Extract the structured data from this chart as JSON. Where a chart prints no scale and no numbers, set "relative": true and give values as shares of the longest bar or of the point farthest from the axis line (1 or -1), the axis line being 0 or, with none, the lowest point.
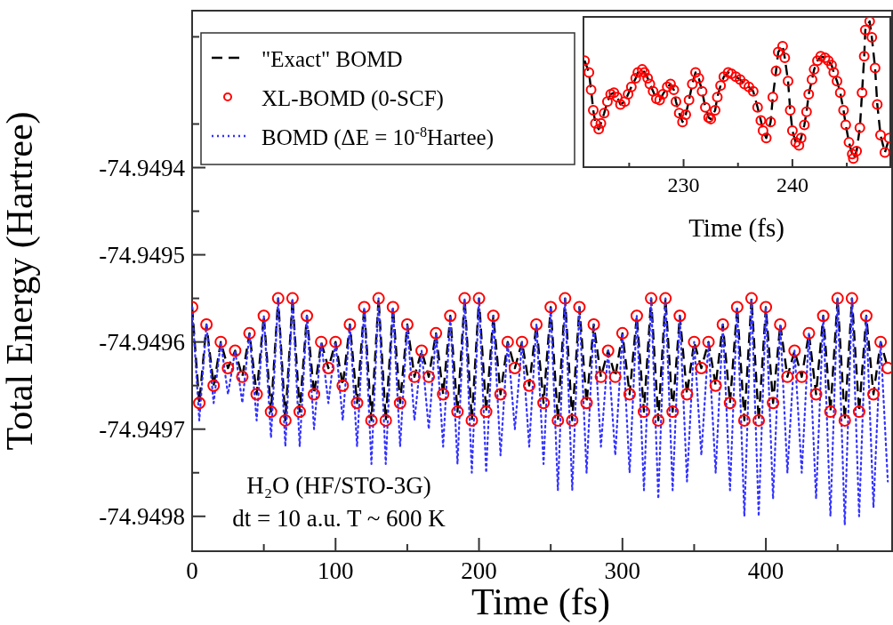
{
  "chart_data": [
    {
      "type": "line",
      "xlabel": "Time (fs)",
      "ylabel": "Total Energy (Hartree)",
      "xlim": [
        0,
        488
      ],
      "ylim": [
        -74.94984,
        -74.94922
      ],
      "xticks": [
        0,
        {
          "value": 50,
          "label": null
        },
        100,
        {
          "value": 150,
          "label": null
        },
        200,
        {
          "value": 250,
          "label": null
        },
        300,
        {
          "value": 350,
          "label": null
        },
        400,
        {
          "value": 450,
          "label": null
        }
      ],
      "yticks": [
        {
          "value": -74.94975,
          "label": null
        },
        -74.9498,
        -74.9497,
        {
          "value": -74.94965,
          "label": null
        },
        -74.9496,
        {
          "value": -74.94955,
          "label": null
        },
        -74.9495,
        {
          "value": -74.94945,
          "label": null
        },
        -74.9494,
        {
          "value": -74.94935,
          "label": null
        },
        {
          "value": -74.94925,
          "label": null
        }
      ],
      "legend": "top left",
      "annotations": [
        "H₂O (HF/STO-3G)",
        "dt = 10 a.u. T ~ 600 K"
      ],
      "x": [
        0,
        5,
        10,
        15,
        20,
        25,
        30,
        35,
        40,
        45,
        50,
        55,
        60,
        65,
        70,
        75,
        80,
        85,
        90,
        95,
        100,
        105,
        110,
        115,
        120,
        125,
        130,
        135,
        140,
        145,
        150,
        155,
        160,
        165,
        170,
        175,
        180,
        185,
        190,
        195,
        200,
        205,
        210,
        215,
        220,
        225,
        230,
        235,
        240,
        245,
        250,
        255,
        260,
        265,
        270,
        275,
        280,
        285,
        290,
        295,
        300,
        305,
        310,
        315,
        320,
        325,
        330,
        335,
        340,
        345,
        350,
        355,
        360,
        365,
        370,
        375,
        380,
        385,
        390,
        395,
        400,
        405,
        410,
        415,
        420,
        425,
        430,
        435,
        440,
        445,
        450,
        455,
        460,
        465,
        470,
        475,
        480,
        485
      ],
      "series": [
        {
          "name": "\"Exact\" BOMD",
          "type": "line",
          "color": "#000000",
          "line_style": "dashed",
          "values": [
            -74.94956,
            -74.94967,
            -74.94958,
            -74.94965,
            -74.9496,
            -74.94963,
            -74.94961,
            -74.94964,
            -74.94959,
            -74.94966,
            -74.94957,
            -74.94968,
            -74.94955,
            -74.94969,
            -74.94955,
            -74.94968,
            -74.94957,
            -74.94966,
            -74.9496,
            -74.94963,
            -74.9496,
            -74.94965,
            -74.94958,
            -74.94967,
            -74.94956,
            -74.94969,
            -74.94955,
            -74.94969,
            -74.94956,
            -74.94967,
            -74.94958,
            -74.94964,
            -74.94961,
            -74.94964,
            -74.94959,
            -74.94966,
            -74.94957,
            -74.94968,
            -74.94955,
            -74.94969,
            -74.94955,
            -74.94968,
            -74.94957,
            -74.94966,
            -74.9496,
            -74.94963,
            -74.9496,
            -74.94965,
            -74.94958,
            -74.94967,
            -74.94956,
            -74.94969,
            -74.94955,
            -74.94969,
            -74.94956,
            -74.94967,
            -74.94958,
            -74.94964,
            -74.94961,
            -74.94964,
            -74.94959,
            -74.94966,
            -74.94957,
            -74.94968,
            -74.94955,
            -74.94969,
            -74.94955,
            -74.94968,
            -74.94957,
            -74.94966,
            -74.9496,
            -74.94963,
            -74.9496,
            -74.94965,
            -74.94958,
            -74.94967,
            -74.94956,
            -74.94969,
            -74.94955,
            -74.94969,
            -74.94956,
            -74.94967,
            -74.94958,
            -74.94964,
            -74.94961,
            -74.94964,
            -74.94959,
            -74.94966,
            -74.94957,
            -74.94968,
            -74.94955,
            -74.94969,
            -74.94955,
            -74.94968,
            -74.94957,
            -74.94966,
            -74.9496,
            -74.94963
          ]
        },
        {
          "name": "XL-BOMD (0-SCF)",
          "type": "scatter",
          "color": "#ff0000",
          "marker": "circle",
          "values": [
            -74.94956,
            -74.94967,
            -74.94958,
            -74.94965,
            -74.9496,
            -74.94963,
            -74.94961,
            -74.94964,
            -74.94959,
            -74.94966,
            -74.94957,
            -74.94968,
            -74.94955,
            -74.94969,
            -74.94955,
            -74.94968,
            -74.94957,
            -74.94966,
            -74.9496,
            -74.94963,
            -74.9496,
            -74.94965,
            -74.94958,
            -74.94967,
            -74.94956,
            -74.94969,
            -74.94955,
            -74.94969,
            -74.94956,
            -74.94967,
            -74.94958,
            -74.94964,
            -74.94961,
            -74.94964,
            -74.94959,
            -74.94966,
            -74.94957,
            -74.94968,
            -74.94955,
            -74.94969,
            -74.94955,
            -74.94968,
            -74.94957,
            -74.94966,
            -74.9496,
            -74.94963,
            -74.9496,
            -74.94965,
            -74.94958,
            -74.94967,
            -74.94956,
            -74.94969,
            -74.94955,
            -74.94969,
            -74.94956,
            -74.94967,
            -74.94958,
            -74.94964,
            -74.94961,
            -74.94964,
            -74.94959,
            -74.94966,
            -74.94957,
            -74.94968,
            -74.94955,
            -74.94969,
            -74.94955,
            -74.94968,
            -74.94957,
            -74.94966,
            -74.9496,
            -74.94963,
            -74.9496,
            -74.94965,
            -74.94958,
            -74.94967,
            -74.94956,
            -74.94969,
            -74.94955,
            -74.94969,
            -74.94956,
            -74.94967,
            -74.94958,
            -74.94964,
            -74.94961,
            -74.94964,
            -74.94959,
            -74.94966,
            -74.94957,
            -74.94968,
            -74.94955,
            -74.94969,
            -74.94955,
            -74.94968,
            -74.94957,
            -74.94966,
            -74.9496,
            -74.94963
          ]
        },
        {
          "name": "BOMD (ΔE = 10$^{-8}$Hartee)",
          "type": "line",
          "color": "#3333ff",
          "line_style": "dotted",
          "values": [
            -74.94956,
            -74.94969,
            -74.94958,
            -74.94967,
            -74.9496,
            -74.94966,
            -74.94961,
            -74.94967,
            -74.94959,
            -74.94969,
            -74.94957,
            -74.94971,
            -74.94955,
            -74.94972,
            -74.94955,
            -74.94972,
            -74.94957,
            -74.9497,
            -74.9496,
            -74.94967,
            -74.9496,
            -74.94969,
            -74.94958,
            -74.94972,
            -74.94956,
            -74.94974,
            -74.94955,
            -74.94974,
            -74.94956,
            -74.94972,
            -74.94958,
            -74.94969,
            -74.94961,
            -74.9497,
            -74.94959,
            -74.94972,
            -74.94957,
            -74.94974,
            -74.94955,
            -74.94975,
            -74.94955,
            -74.94975,
            -74.94957,
            -74.94973,
            -74.9496,
            -74.9497,
            -74.9496,
            -74.94972,
            -74.94958,
            -74.94974,
            -74.94956,
            -74.94977,
            -74.94955,
            -74.94977,
            -74.94956,
            -74.94975,
            -74.94958,
            -74.94972,
            -74.94961,
            -74.94973,
            -74.94959,
            -74.94975,
            -74.94957,
            -74.94977,
            -74.94955,
            -74.94978,
            -74.94955,
            -74.94977,
            -74.94957,
            -74.94976,
            -74.9496,
            -74.94973,
            -74.9496,
            -74.94975,
            -74.94958,
            -74.94977,
            -74.94956,
            -74.9498,
            -74.94955,
            -74.9498,
            -74.94956,
            -74.94978,
            -74.94958,
            -74.94975,
            -74.94961,
            -74.94975,
            -74.94959,
            -74.94978,
            -74.94957,
            -74.9498,
            -74.94955,
            -74.94981,
            -74.94955,
            -74.9498,
            -74.94957,
            -74.94979,
            -74.9496,
            -74.94976
          ]
        }
      ]
    },
    {
      "type": "line",
      "relative": true,
      "xlabel": "Time (fs)",
      "xlim": [
        220.8,
        249
      ],
      "xticks": [
        {
          "value": 225,
          "label": null
        },
        230,
        {
          "value": 235,
          "label": null
        },
        240,
        {
          "value": 245,
          "label": null
        }
      ],
      "tick_labels": "x",
      "x": [
        220.9,
        221.3,
        221.5,
        221.7,
        221.9,
        222.2,
        222.4,
        222.7,
        223.0,
        223.3,
        223.6,
        223.9,
        224.2,
        224.6,
        224.9,
        225.2,
        225.6,
        225.8,
        226.2,
        226.4,
        226.7,
        226.9,
        227.2,
        227.5,
        227.8,
        228.1,
        228.5,
        228.8,
        229.1,
        229.3,
        229.6,
        229.9,
        230.2,
        230.5,
        230.8,
        231.1,
        231.4,
        231.7,
        232.0,
        232.3,
        232.5,
        232.9,
        233.1,
        233.4,
        233.7,
        234.1,
        234.4,
        234.8,
        235.2,
        235.6,
        236.0,
        236.4,
        236.8,
        237.1,
        237.3,
        237.6,
        238.0,
        238.2,
        238.5,
        238.7,
        239.1,
        239.3,
        239.6,
        239.8,
        240.0,
        240.3,
        240.6,
        240.8,
        241.1,
        241.3,
        241.5,
        241.8,
        242.0,
        242.3,
        242.6,
        243.0,
        243.3,
        243.6,
        243.8,
        244.1,
        244.4,
        244.7,
        244.9,
        245.2,
        245.5,
        245.6,
        245.9,
        246.2,
        246.4,
        246.6,
        246.7,
        247.1,
        247.3,
        247.6,
        247.8,
        248.1,
        248.5,
        248.9
      ],
      "series": [
        {
          "type": "line",
          "color": "#000000",
          "line_style": "dashed",
          "values": [
            0.73,
            0.65,
            0.53,
            0.39,
            0.3,
            0.26,
            0.3,
            0.37,
            0.45,
            0.5,
            0.51,
            0.48,
            0.43,
            0.45,
            0.5,
            0.55,
            0.61,
            0.65,
            0.67,
            0.65,
            0.61,
            0.57,
            0.52,
            0.47,
            0.46,
            0.5,
            0.55,
            0.57,
            0.53,
            0.45,
            0.37,
            0.31,
            0.36,
            0.46,
            0.57,
            0.65,
            0.61,
            0.52,
            0.41,
            0.34,
            0.33,
            0.39,
            0.48,
            0.56,
            0.62,
            0.65,
            0.64,
            0.62,
            0.6,
            0.57,
            0.55,
            0.52,
            0.41,
            0.32,
            0.25,
            0.2,
            0.31,
            0.48,
            0.66,
            0.79,
            0.83,
            0.75,
            0.59,
            0.39,
            0.25,
            0.17,
            0.15,
            0.2,
            0.29,
            0.38,
            0.5,
            0.6,
            0.67,
            0.73,
            0.76,
            0.75,
            0.73,
            0.7,
            0.65,
            0.59,
            0.51,
            0.39,
            0.29,
            0.17,
            0.09,
            0.06,
            0.11,
            0.27,
            0.51,
            0.76,
            0.94,
            1,
            0.89,
            0.68,
            0.43,
            0.22,
            0.1,
            0.2
          ]
        },
        {
          "type": "scatter",
          "color": "#ff0000",
          "marker": "circle",
          "values": [
            0.73,
            0.65,
            0.53,
            0.39,
            0.3,
            0.26,
            0.3,
            0.37,
            0.45,
            0.5,
            0.51,
            0.48,
            0.43,
            0.45,
            0.5,
            0.55,
            0.61,
            0.65,
            0.67,
            0.65,
            0.61,
            0.57,
            0.52,
            0.47,
            0.46,
            0.5,
            0.55,
            0.57,
            0.53,
            0.45,
            0.37,
            0.31,
            0.36,
            0.46,
            0.57,
            0.65,
            0.61,
            0.52,
            0.41,
            0.34,
            0.33,
            0.39,
            0.48,
            0.56,
            0.62,
            0.65,
            0.64,
            0.62,
            0.6,
            0.57,
            0.55,
            0.52,
            0.41,
            0.32,
            0.25,
            0.2,
            0.31,
            0.48,
            0.66,
            0.79,
            0.83,
            0.75,
            0.59,
            0.39,
            0.25,
            0.17,
            0.15,
            0.2,
            0.29,
            0.38,
            0.5,
            0.6,
            0.67,
            0.73,
            0.76,
            0.75,
            0.73,
            0.7,
            0.65,
            0.59,
            0.51,
            0.39,
            0.29,
            0.17,
            0.09,
            0.06,
            0.11,
            0.27,
            0.51,
            0.76,
            0.94,
            1,
            0.89,
            0.68,
            0.43,
            0.22,
            0.1,
            0.2
          ]
        }
      ]
    }
  ]
}
